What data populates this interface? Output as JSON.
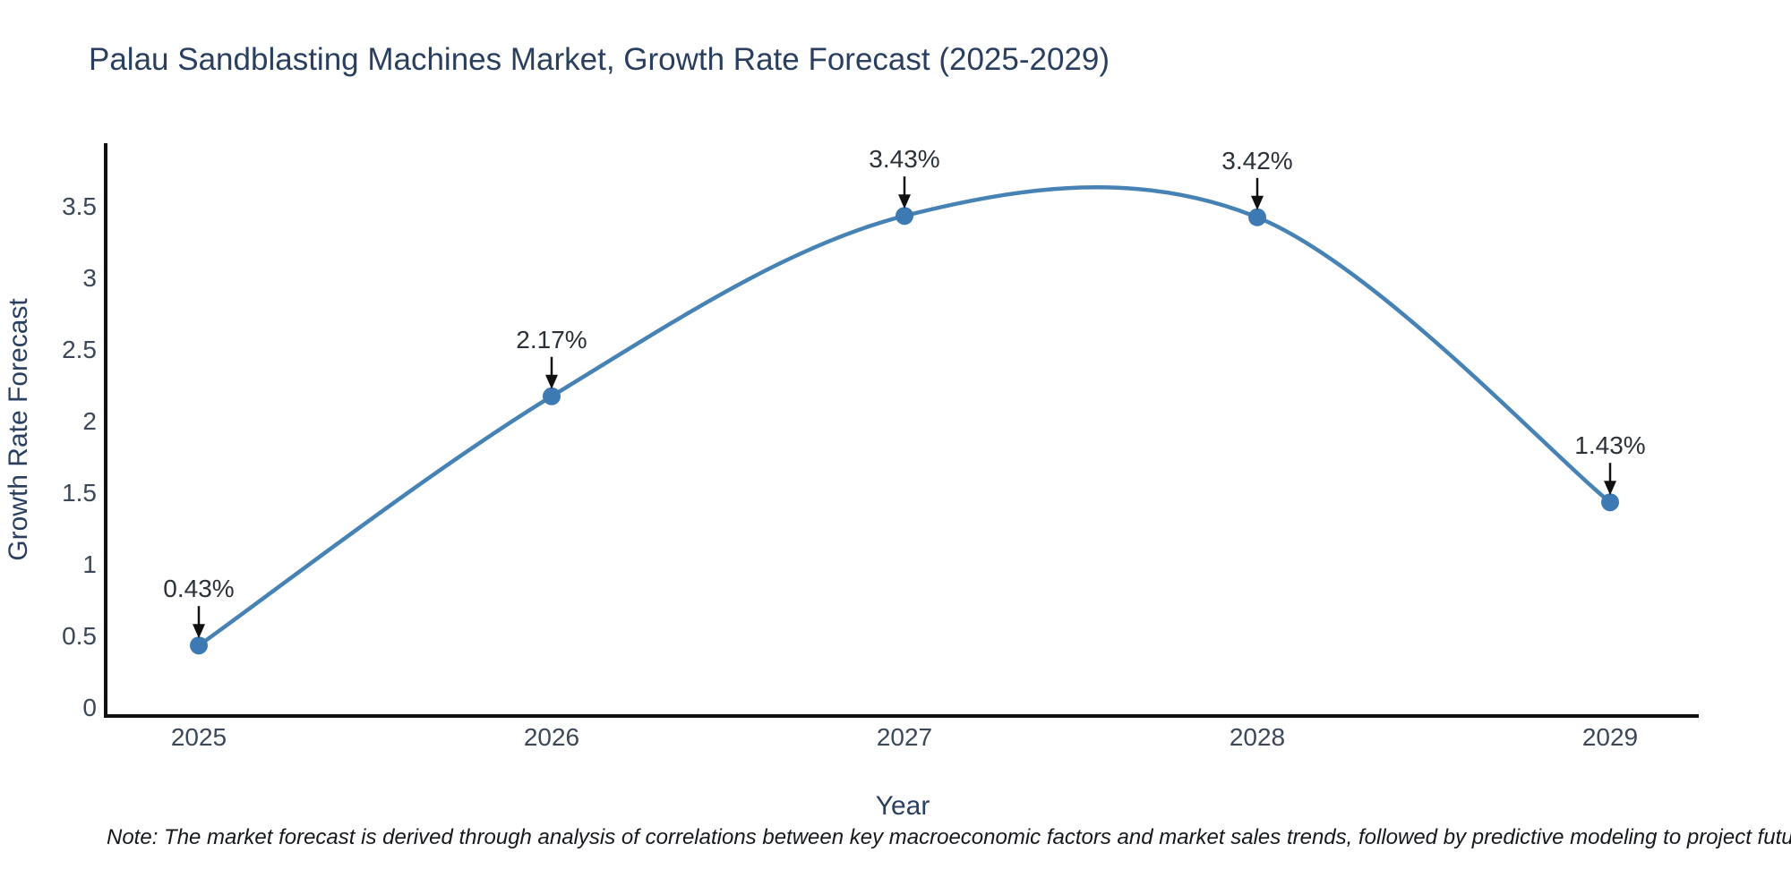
{
  "chart_data": {
    "type": "line",
    "title": "Palau Sandblasting Machines Market, Growth Rate Forecast (2025-2029)",
    "xlabel": "Year",
    "ylabel": "Growth Rate Forecast",
    "categories": [
      "2025",
      "2026",
      "2027",
      "2028",
      "2029"
    ],
    "series": [
      {
        "name": "Growth Rate Forecast",
        "values": [
          0.43,
          2.17,
          3.43,
          3.42,
          1.43
        ]
      }
    ],
    "annotations": [
      "0.43%",
      "2.17%",
      "3.43%",
      "3.42%",
      "1.43%"
    ],
    "y_ticks": [
      0,
      0.5,
      1,
      1.5,
      2,
      2.5,
      3,
      3.5
    ],
    "y_tick_labels": [
      "0",
      "0.5",
      "1",
      "1.5",
      "2",
      "2.5",
      "3",
      "3.5"
    ],
    "ylim": [
      0,
      3.94
    ],
    "grid": false,
    "line_style": "spline",
    "legend_position": "none",
    "colors": {
      "line": "#4682b4",
      "marker": "#3d79b3",
      "axis": "#111111",
      "arrow": "#111111",
      "title_text": "#2a3f5f",
      "tick_text": "#3c4758",
      "annotation_text": "#2b3138"
    }
  },
  "note": "Note: The market forecast is derived through analysis of correlations between key macroeconomic factors and market sales trends, followed by predictive modeling to project future sales"
}
